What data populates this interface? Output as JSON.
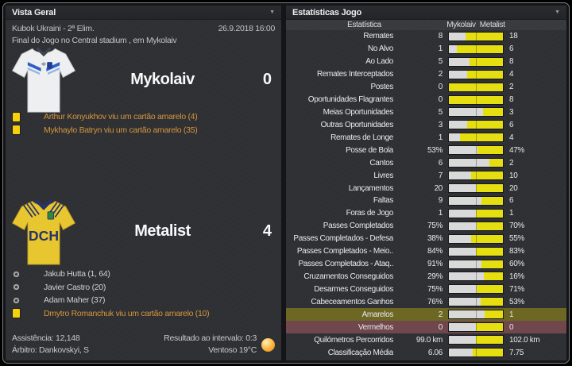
{
  "overview": {
    "title": "Vista Geral",
    "competition": "Kubok Ukraini - 2ª Elim.",
    "datetime": "26.9.2018 16:00",
    "status": "Final do Jogo no Central stadium , em Mykolaiv",
    "home": {
      "name": "Mykolaiv",
      "score": "0",
      "events": [
        {
          "icon": "yellow-card",
          "text": "Arthur Konyukhov viu um cartão amarelo (4)"
        },
        {
          "icon": "yellow-card",
          "text": "Mykhaylo Batryn viu um cartão amarelo (35)"
        }
      ]
    },
    "away": {
      "name": "Metalist",
      "score": "4",
      "shirt_text": "DCH",
      "events": [
        {
          "icon": "goal",
          "text": "Jakub Hutta (1, 64)"
        },
        {
          "icon": "goal",
          "text": "Javier Castro (20)"
        },
        {
          "icon": "goal",
          "text": "Adam Maher (37)"
        },
        {
          "icon": "yellow-card",
          "text": "Dmytro Romanchuk viu um cartão amarelo (10)"
        }
      ]
    },
    "footer": {
      "attendance": "Assistência: 12,148",
      "referee": "Árbitro: Dankovskyi, S",
      "halftime": "Resultado ao intervalo: 0:3",
      "weather": "Ventoso 19°C",
      "weather_icon": "sun-icon"
    }
  },
  "stats": {
    "title": "Estatísticas Jogo",
    "column_header": "Estatística",
    "home_header": "Mykolaiv",
    "away_header": "Metalist",
    "bar_home_color": "#d9d9d9",
    "bar_away_color": "#e5de10",
    "highlight_colors": {
      "yellow": "#6d6724",
      "red": "#6f474d"
    },
    "rows": [
      {
        "label": "Remates",
        "home": "8",
        "away": "18"
      },
      {
        "label": "No Alvo",
        "home": "1",
        "away": "6"
      },
      {
        "label": "Ao Lado",
        "home": "5",
        "away": "8"
      },
      {
        "label": "Remates Interceptados",
        "home": "2",
        "away": "4"
      },
      {
        "label": "Postes",
        "home": "0",
        "away": "2"
      },
      {
        "label": "Oportunidades Flagrantes",
        "home": "0",
        "away": "8"
      },
      {
        "label": "Meias Oportunidades",
        "home": "5",
        "away": "3"
      },
      {
        "label": "Outras Oportunidades",
        "home": "3",
        "away": "6"
      },
      {
        "label": "Remates de Longe",
        "home": "1",
        "away": "4"
      },
      {
        "label": "Posse de Bola",
        "home": "53%",
        "away": "47%"
      },
      {
        "label": "Cantos",
        "home": "6",
        "away": "2"
      },
      {
        "label": "Livres",
        "home": "7",
        "away": "10"
      },
      {
        "label": "Lançamentos",
        "home": "20",
        "away": "20"
      },
      {
        "label": "Faltas",
        "home": "9",
        "away": "6"
      },
      {
        "label": "Foras de Jogo",
        "home": "1",
        "away": "1"
      },
      {
        "label": "Passes Completados",
        "home": "75%",
        "away": "70%"
      },
      {
        "label": "Passes Completados - Defesa",
        "home": "38%",
        "away": "55%"
      },
      {
        "label": "Passes Completados - Meio..",
        "home": "84%",
        "away": "83%"
      },
      {
        "label": "Passes Completados - Ataq..",
        "home": "91%",
        "away": "60%"
      },
      {
        "label": "Cruzamentos Conseguidos",
        "home": "29%",
        "away": "16%"
      },
      {
        "label": "Desarmes Conseguidos",
        "home": "75%",
        "away": "71%"
      },
      {
        "label": "Cabeceamentos Ganhos",
        "home": "76%",
        "away": "53%"
      },
      {
        "label": "Amarelos",
        "home": "2",
        "away": "1",
        "highlight": "yellow"
      },
      {
        "label": "Vermelhos",
        "home": "0",
        "away": "0",
        "highlight": "red"
      },
      {
        "label": "Quilómetros Percorridos",
        "home": "99.0 km",
        "away": "102.0 km"
      },
      {
        "label": "Classificação Média",
        "home": "6.06",
        "away": "7.75"
      }
    ]
  }
}
